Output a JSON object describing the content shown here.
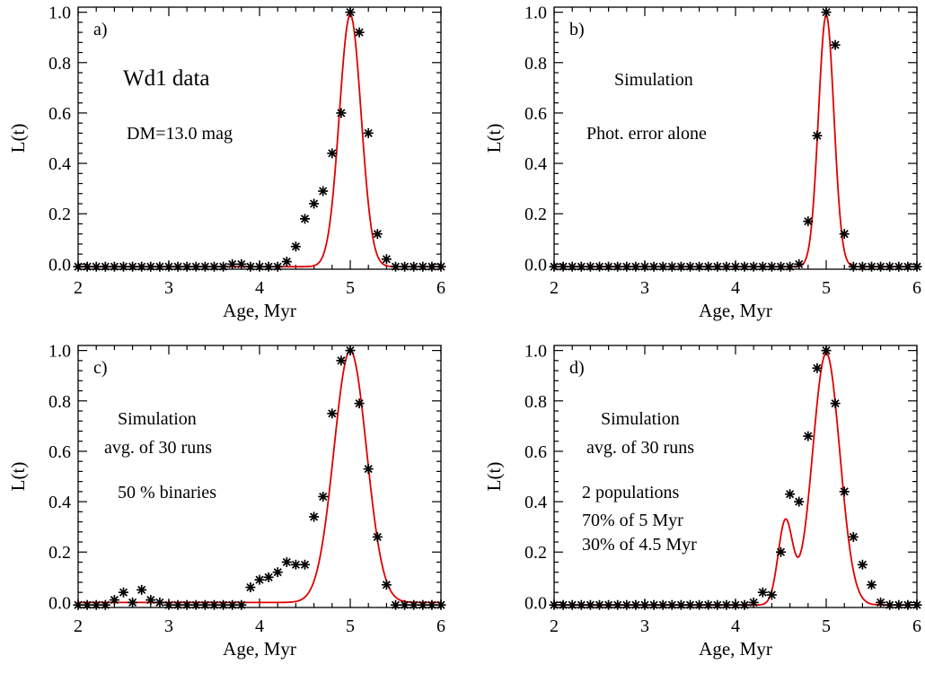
{
  "chart_data": [
    {
      "type": "scatter",
      "panel_label": "a)",
      "annotations": [
        "Wd1 data",
        "DM=13.0 mag"
      ],
      "xlabel": "Age, Myr",
      "ylabel": "L(t)",
      "xlim": [
        2,
        6
      ],
      "ylim": [
        -0.02,
        1.02
      ],
      "x_ticks": [
        "2",
        "3",
        "4",
        "5",
        "6"
      ],
      "y_ticks": [
        "0.0",
        "0.2",
        "0.4",
        "0.6",
        "0.8",
        "1.0"
      ],
      "points": {
        "x": [
          2.0,
          2.1,
          2.2,
          2.3,
          2.4,
          2.5,
          2.6,
          2.7,
          2.8,
          2.9,
          3.0,
          3.1,
          3.2,
          3.3,
          3.4,
          3.5,
          3.6,
          3.7,
          3.8,
          3.9,
          4.0,
          4.1,
          4.2,
          4.3,
          4.4,
          4.5,
          4.6,
          4.7,
          4.8,
          4.9,
          5.0,
          5.1,
          5.2,
          5.3,
          5.4,
          5.5,
          5.6,
          5.7,
          5.8,
          5.9,
          6.0
        ],
        "y": [
          -0.01,
          -0.01,
          -0.01,
          -0.01,
          -0.01,
          -0.01,
          -0.01,
          -0.01,
          -0.01,
          -0.01,
          -0.01,
          -0.01,
          -0.01,
          -0.01,
          -0.01,
          -0.01,
          -0.01,
          0.0,
          0.0,
          -0.01,
          -0.01,
          -0.01,
          -0.01,
          0.01,
          0.07,
          0.18,
          0.24,
          0.29,
          0.44,
          0.6,
          1.0,
          0.92,
          0.52,
          0.12,
          0.02,
          -0.01,
          -0.01,
          -0.01,
          -0.01,
          -0.01,
          -0.01
        ]
      },
      "fit_curve": {
        "components": [
          {
            "center": 5.0,
            "sigma": 0.12,
            "amplitude": 1.0
          }
        ],
        "baseline": -0.01
      }
    },
    {
      "type": "scatter",
      "panel_label": "b)",
      "annotations": [
        "Simulation",
        "Phot. error alone"
      ],
      "xlabel": "Age, Myr",
      "ylabel": "L(t)",
      "xlim": [
        2,
        6
      ],
      "ylim": [
        -0.02,
        1.02
      ],
      "x_ticks": [
        "2",
        "3",
        "4",
        "5",
        "6"
      ],
      "y_ticks": [
        "0.0",
        "0.2",
        "0.4",
        "0.6",
        "0.8",
        "1.0"
      ],
      "points": {
        "x": [
          2.0,
          2.1,
          2.2,
          2.3,
          2.4,
          2.5,
          2.6,
          2.7,
          2.8,
          2.9,
          3.0,
          3.1,
          3.2,
          3.3,
          3.4,
          3.5,
          3.6,
          3.7,
          3.8,
          3.9,
          4.0,
          4.1,
          4.2,
          4.3,
          4.4,
          4.5,
          4.6,
          4.7,
          4.8,
          4.9,
          5.0,
          5.1,
          5.2,
          5.3,
          5.4,
          5.5,
          5.6,
          5.7,
          5.8,
          5.9,
          6.0
        ],
        "y": [
          -0.01,
          -0.01,
          -0.01,
          -0.01,
          -0.01,
          -0.01,
          -0.01,
          -0.01,
          -0.01,
          -0.01,
          -0.01,
          -0.01,
          -0.01,
          -0.01,
          -0.01,
          -0.01,
          -0.01,
          -0.01,
          -0.01,
          -0.01,
          -0.01,
          -0.01,
          -0.01,
          -0.01,
          -0.01,
          -0.01,
          -0.01,
          0.0,
          0.17,
          0.51,
          1.0,
          0.87,
          0.12,
          -0.01,
          -0.01,
          -0.01,
          -0.01,
          -0.01,
          -0.01,
          -0.01,
          -0.01
        ]
      },
      "fit_curve": {
        "components": [
          {
            "center": 5.0,
            "sigma": 0.085,
            "amplitude": 1.0
          }
        ],
        "baseline": -0.01
      }
    },
    {
      "type": "scatter",
      "panel_label": "c)",
      "annotations": [
        "Simulation",
        "avg. of 30 runs",
        "50 % binaries"
      ],
      "xlabel": "Age, Myr",
      "ylabel": "L(t)",
      "xlim": [
        2,
        6
      ],
      "ylim": [
        -0.02,
        1.02
      ],
      "x_ticks": [
        "2",
        "3",
        "4",
        "5",
        "6"
      ],
      "y_ticks": [
        "0.0",
        "0.2",
        "0.4",
        "0.6",
        "0.8",
        "1.0"
      ],
      "points": {
        "x": [
          2.0,
          2.1,
          2.2,
          2.3,
          2.4,
          2.5,
          2.6,
          2.7,
          2.8,
          2.9,
          3.0,
          3.1,
          3.2,
          3.3,
          3.4,
          3.5,
          3.6,
          3.7,
          3.8,
          3.9,
          4.0,
          4.1,
          4.2,
          4.3,
          4.4,
          4.5,
          4.6,
          4.7,
          4.8,
          4.9,
          5.0,
          5.1,
          5.2,
          5.3,
          5.4,
          5.5,
          5.6,
          5.7,
          5.8,
          5.9,
          6.0
        ],
        "y": [
          -0.01,
          -0.01,
          -0.01,
          -0.01,
          0.01,
          0.04,
          0.0,
          0.05,
          0.01,
          0.0,
          -0.01,
          -0.01,
          -0.01,
          -0.01,
          -0.01,
          -0.01,
          -0.01,
          -0.01,
          -0.01,
          0.06,
          0.09,
          0.1,
          0.12,
          0.16,
          0.15,
          0.15,
          0.34,
          0.42,
          0.75,
          0.96,
          1.0,
          0.79,
          0.53,
          0.26,
          0.07,
          -0.01,
          -0.01,
          -0.01,
          -0.01,
          -0.01,
          -0.01
        ]
      },
      "fit_curve": {
        "components": [
          {
            "center": 5.0,
            "sigma": 0.18,
            "amplitude": 1.0
          }
        ],
        "baseline": 0.0
      }
    },
    {
      "type": "scatter",
      "panel_label": "d)",
      "annotations": [
        "Simulation",
        "avg. of 30 runs",
        "2 populations",
        "70% of 5 Myr",
        "30% of 4.5 Myr"
      ],
      "xlabel": "Age, Myr",
      "ylabel": "L(t)",
      "xlim": [
        2,
        6
      ],
      "ylim": [
        -0.02,
        1.02
      ],
      "x_ticks": [
        "2",
        "3",
        "4",
        "5",
        "6"
      ],
      "y_ticks": [
        "0.0",
        "0.2",
        "0.4",
        "0.6",
        "0.8",
        "1.0"
      ],
      "points": {
        "x": [
          2.0,
          2.1,
          2.2,
          2.3,
          2.4,
          2.5,
          2.6,
          2.7,
          2.8,
          2.9,
          3.0,
          3.1,
          3.2,
          3.3,
          3.4,
          3.5,
          3.6,
          3.7,
          3.8,
          3.9,
          4.0,
          4.1,
          4.2,
          4.3,
          4.4,
          4.5,
          4.6,
          4.7,
          4.8,
          4.9,
          5.0,
          5.1,
          5.2,
          5.3,
          5.4,
          5.5,
          5.6,
          5.7,
          5.8,
          5.9,
          6.0
        ],
        "y": [
          -0.01,
          -0.01,
          -0.01,
          -0.01,
          -0.01,
          -0.01,
          -0.01,
          -0.01,
          -0.01,
          -0.01,
          -0.01,
          -0.01,
          -0.01,
          -0.01,
          -0.01,
          -0.01,
          -0.01,
          -0.01,
          -0.01,
          -0.01,
          -0.01,
          -0.01,
          0.0,
          0.04,
          0.03,
          0.2,
          0.43,
          0.4,
          0.66,
          0.93,
          1.0,
          0.79,
          0.44,
          0.26,
          0.15,
          0.07,
          0.0,
          -0.01,
          -0.01,
          -0.01,
          -0.01
        ]
      },
      "fit_curve": {
        "components": [
          {
            "center": 5.0,
            "sigma": 0.15,
            "amplitude": 1.0
          },
          {
            "center": 4.55,
            "sigma": 0.08,
            "amplitude": 0.33
          }
        ],
        "baseline": -0.01
      }
    }
  ]
}
